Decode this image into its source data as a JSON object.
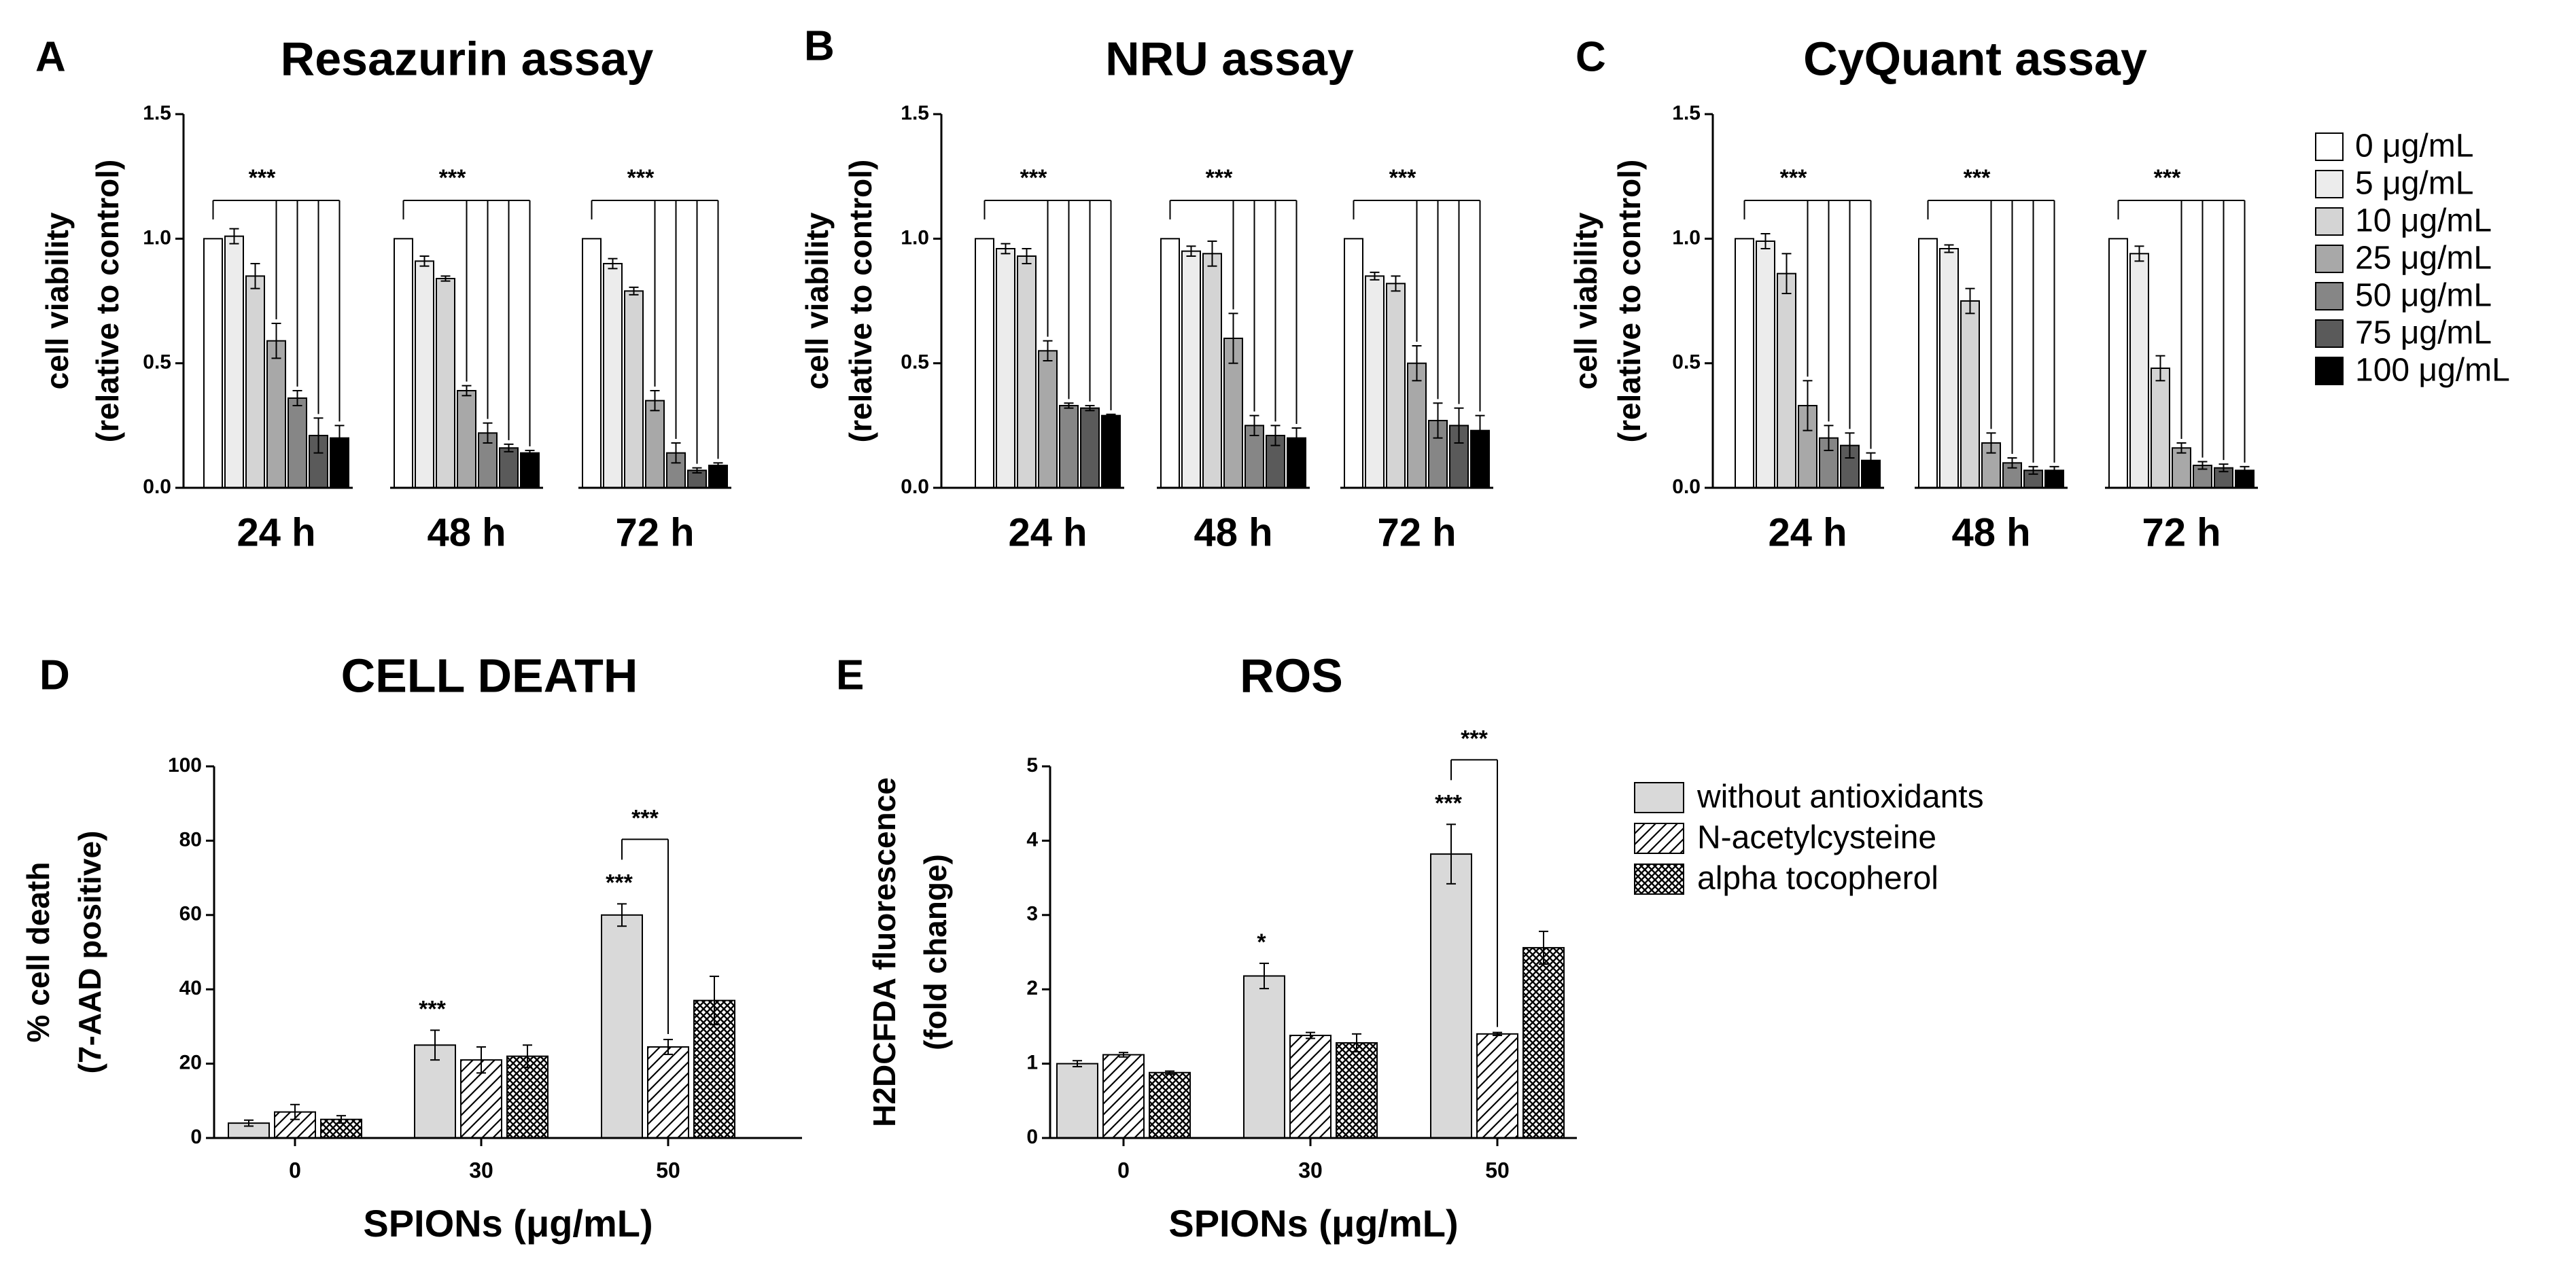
{
  "legend_doses": {
    "items": [
      {
        "label": "0 μg/mL",
        "color": "#ffffff"
      },
      {
        "label": "5 μg/mL",
        "color": "#ececec"
      },
      {
        "label": "10 μg/mL",
        "color": "#d4d4d4"
      },
      {
        "label": "25 μg/mL",
        "color": "#a8a8a8"
      },
      {
        "label": "50 μg/mL",
        "color": "#868686"
      },
      {
        "label": "75 μg/mL",
        "color": "#5a5a5a"
      },
      {
        "label": "100 μg/mL",
        "color": "#000000"
      }
    ]
  },
  "legend_treatments": {
    "items": [
      {
        "label": "without antioxidants",
        "pattern": "solid",
        "color": "#d9d9d9"
      },
      {
        "label": "N-acetylcysteine",
        "pattern": "hatch",
        "color": "#ffffff"
      },
      {
        "label": "alpha tocopherol",
        "pattern": "crosshatch",
        "color": "#ffffff"
      }
    ]
  },
  "chart_data": [
    {
      "panel": "A",
      "type": "bar",
      "title": "Resazurin assay",
      "ylabel": "cell viability",
      "ylabel2": "(relative to control)",
      "xlabel": "",
      "ylim": [
        0,
        1.5
      ],
      "yticks": [
        "0.0",
        "0.5",
        "1.0",
        "1.5"
      ],
      "categories": [
        "24 h",
        "48 h",
        "72 h"
      ],
      "series": [
        {
          "name": "0 μg/mL",
          "values": [
            1.0,
            1.0,
            1.0
          ],
          "errors": [
            0,
            0,
            0
          ]
        },
        {
          "name": "5 μg/mL",
          "values": [
            1.01,
            0.91,
            0.9
          ],
          "errors": [
            0.03,
            0.02,
            0.02
          ]
        },
        {
          "name": "10 μg/mL",
          "values": [
            0.85,
            0.84,
            0.79
          ],
          "errors": [
            0.05,
            0.01,
            0.015
          ]
        },
        {
          "name": "25 μg/mL",
          "values": [
            0.59,
            0.39,
            0.35
          ],
          "errors": [
            0.07,
            0.02,
            0.04
          ]
        },
        {
          "name": "50 μg/mL",
          "values": [
            0.36,
            0.22,
            0.14
          ],
          "errors": [
            0.03,
            0.04,
            0.04
          ]
        },
        {
          "name": "75 μg/mL",
          "values": [
            0.21,
            0.16,
            0.07
          ],
          "errors": [
            0.07,
            0.015,
            0.01
          ]
        },
        {
          "name": "100 μg/mL",
          "values": [
            0.2,
            0.14,
            0.09
          ],
          "errors": [
            0.05,
            0.01,
            0.01
          ]
        }
      ],
      "significance": "***"
    },
    {
      "panel": "B",
      "type": "bar",
      "title": "NRU assay",
      "ylabel": "cell viability",
      "ylabel2": "(relative to control)",
      "xlabel": "",
      "ylim": [
        0,
        1.5
      ],
      "yticks": [
        "0.0",
        "0.5",
        "1.0",
        "1.5"
      ],
      "categories": [
        "24 h",
        "48 h",
        "72 h"
      ],
      "series": [
        {
          "name": "0 μg/mL",
          "values": [
            1.0,
            1.0,
            1.0
          ],
          "errors": [
            0,
            0,
            0
          ]
        },
        {
          "name": "5 μg/mL",
          "values": [
            0.96,
            0.95,
            0.85
          ],
          "errors": [
            0.02,
            0.02,
            0.015
          ]
        },
        {
          "name": "10 μg/mL",
          "values": [
            0.93,
            0.94,
            0.82
          ],
          "errors": [
            0.03,
            0.05,
            0.03
          ]
        },
        {
          "name": "25 μg/mL",
          "values": [
            0.55,
            0.6,
            0.5
          ],
          "errors": [
            0.04,
            0.1,
            0.07
          ]
        },
        {
          "name": "50 μg/mL",
          "values": [
            0.33,
            0.25,
            0.27
          ],
          "errors": [
            0.01,
            0.04,
            0.07
          ]
        },
        {
          "name": "75 μg/mL",
          "values": [
            0.32,
            0.21,
            0.25
          ],
          "errors": [
            0.01,
            0.04,
            0.07
          ]
        },
        {
          "name": "100 μg/mL",
          "values": [
            0.29,
            0.2,
            0.23
          ],
          "errors": [
            0.005,
            0.04,
            0.06
          ]
        }
      ],
      "significance": "***"
    },
    {
      "panel": "C",
      "type": "bar",
      "title": "CyQuant assay",
      "ylabel": "cell viability",
      "ylabel2": "(relative to control)",
      "xlabel": "",
      "ylim": [
        0,
        1.5
      ],
      "yticks": [
        "0.0",
        "0.5",
        "1.0",
        "1.5"
      ],
      "categories": [
        "24 h",
        "48 h",
        "72 h"
      ],
      "series": [
        {
          "name": "0 μg/mL",
          "values": [
            1.0,
            1.0,
            1.0
          ],
          "errors": [
            0,
            0,
            0
          ]
        },
        {
          "name": "5 μg/mL",
          "values": [
            0.99,
            0.96,
            0.94
          ],
          "errors": [
            0.03,
            0.015,
            0.03
          ]
        },
        {
          "name": "10 μg/mL",
          "values": [
            0.86,
            0.75,
            0.48
          ],
          "errors": [
            0.08,
            0.05,
            0.05
          ]
        },
        {
          "name": "25 μg/mL",
          "values": [
            0.33,
            0.18,
            0.16
          ],
          "errors": [
            0.1,
            0.04,
            0.02
          ]
        },
        {
          "name": "50 μg/mL",
          "values": [
            0.2,
            0.1,
            0.09
          ],
          "errors": [
            0.05,
            0.02,
            0.015
          ]
        },
        {
          "name": "75 μg/mL",
          "values": [
            0.17,
            0.07,
            0.08
          ],
          "errors": [
            0.05,
            0.015,
            0.015
          ]
        },
        {
          "name": "100 μg/mL",
          "values": [
            0.11,
            0.07,
            0.07
          ],
          "errors": [
            0.03,
            0.015,
            0.015
          ]
        }
      ],
      "significance": "***"
    },
    {
      "panel": "D",
      "type": "bar",
      "title": "CELL DEATH",
      "ylabel": "% cell death",
      "ylabel2": "(7-AAD positive)",
      "xlabel": "SPIONs (μg/mL)",
      "ylim": [
        0,
        100
      ],
      "yticks": [
        "0",
        "20",
        "40",
        "60",
        "80",
        "100"
      ],
      "categories": [
        "0",
        "30",
        "50"
      ],
      "series": [
        {
          "name": "without antioxidants",
          "values": [
            4,
            25,
            60
          ],
          "errors": [
            0.8,
            4,
            3
          ]
        },
        {
          "name": "N-acetylcysteine",
          "values": [
            7,
            21,
            24.5
          ],
          "errors": [
            2,
            3.5,
            2
          ]
        },
        {
          "name": "alpha tocopherol",
          "values": [
            5,
            22,
            37
          ],
          "errors": [
            1,
            3,
            6.5
          ]
        }
      ],
      "annotations": {
        "star_30": "***",
        "star_50": "***",
        "bracket_50": "***"
      }
    },
    {
      "panel": "E",
      "type": "bar",
      "title": "ROS",
      "ylabel": "H2DCFDA fluorescence",
      "ylabel2": "(fold change)",
      "xlabel": "SPIONs (μg/mL)",
      "ylim": [
        0,
        5
      ],
      "yticks": [
        "0",
        "1",
        "2",
        "3",
        "4",
        "5"
      ],
      "categories": [
        "0",
        "30",
        "50"
      ],
      "series": [
        {
          "name": "without antioxidants",
          "values": [
            1.0,
            2.18,
            3.82
          ],
          "errors": [
            0.04,
            0.17,
            0.4
          ]
        },
        {
          "name": "N-acetylcysteine",
          "values": [
            1.12,
            1.38,
            1.4
          ],
          "errors": [
            0.03,
            0.04,
            0.02
          ]
        },
        {
          "name": "alpha tocopherol",
          "values": [
            0.88,
            1.28,
            2.56
          ],
          "errors": [
            0.02,
            0.12,
            0.22
          ]
        }
      ],
      "annotations": {
        "star_30": "*",
        "star_50": "***",
        "bracket_50": "***"
      }
    }
  ]
}
